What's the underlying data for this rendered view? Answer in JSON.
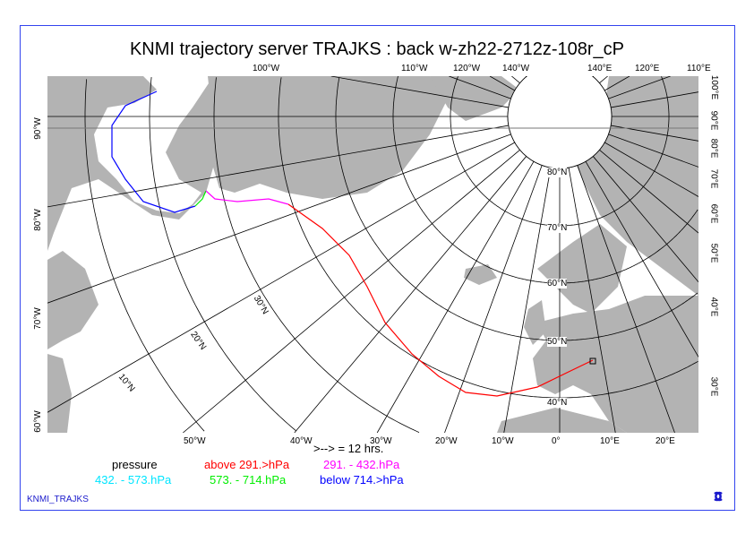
{
  "title": "KNMI trajectory server TRAJKS : back w-zh22-2712z-108r_cP",
  "top_labels": [
    "100°W",
    "110°W",
    "120°W",
    "140°W",
    "140°E",
    "120°E",
    "110°E"
  ],
  "right_labels": [
    "100°E",
    "90°E",
    "80°E",
    "70°E",
    "60°E",
    "50°E",
    "40°E",
    "30°E"
  ],
  "bottom_labels": [
    "50°W",
    "40°W",
    "30°W",
    "20°W",
    "10°W",
    "0°",
    "10°E",
    "20°E"
  ],
  "left_labels": [
    "90°W",
    "80°W",
    "70°W",
    "60°W"
  ],
  "lat_labels": [
    "80°N",
    "70°N",
    "60°N",
    "50°N",
    "40°N"
  ],
  "lat_labels_rot": [
    "30°N",
    "20°N",
    "10°N"
  ],
  "arrow_note": ">--> = 12 hrs.",
  "legend": {
    "title": "pressure",
    "items": [
      {
        "label": "above 291.>hPa",
        "color": "#ff0000"
      },
      {
        "label": "291. -  432.hPa",
        "color": "#ff00ff"
      },
      {
        "label": "432. -  573.hPa",
        "color": "#00e5ff"
      },
      {
        "label": "573. -  714.hPa",
        "color": "#00ee00"
      },
      {
        "label": "below 714.>hPa",
        "color": "#0000ff"
      }
    ]
  },
  "footer": "KNMI_TRAJKS",
  "colors": {
    "land": "#b3b3b3",
    "frame": "#3344ee",
    "grid": "#000000"
  }
}
